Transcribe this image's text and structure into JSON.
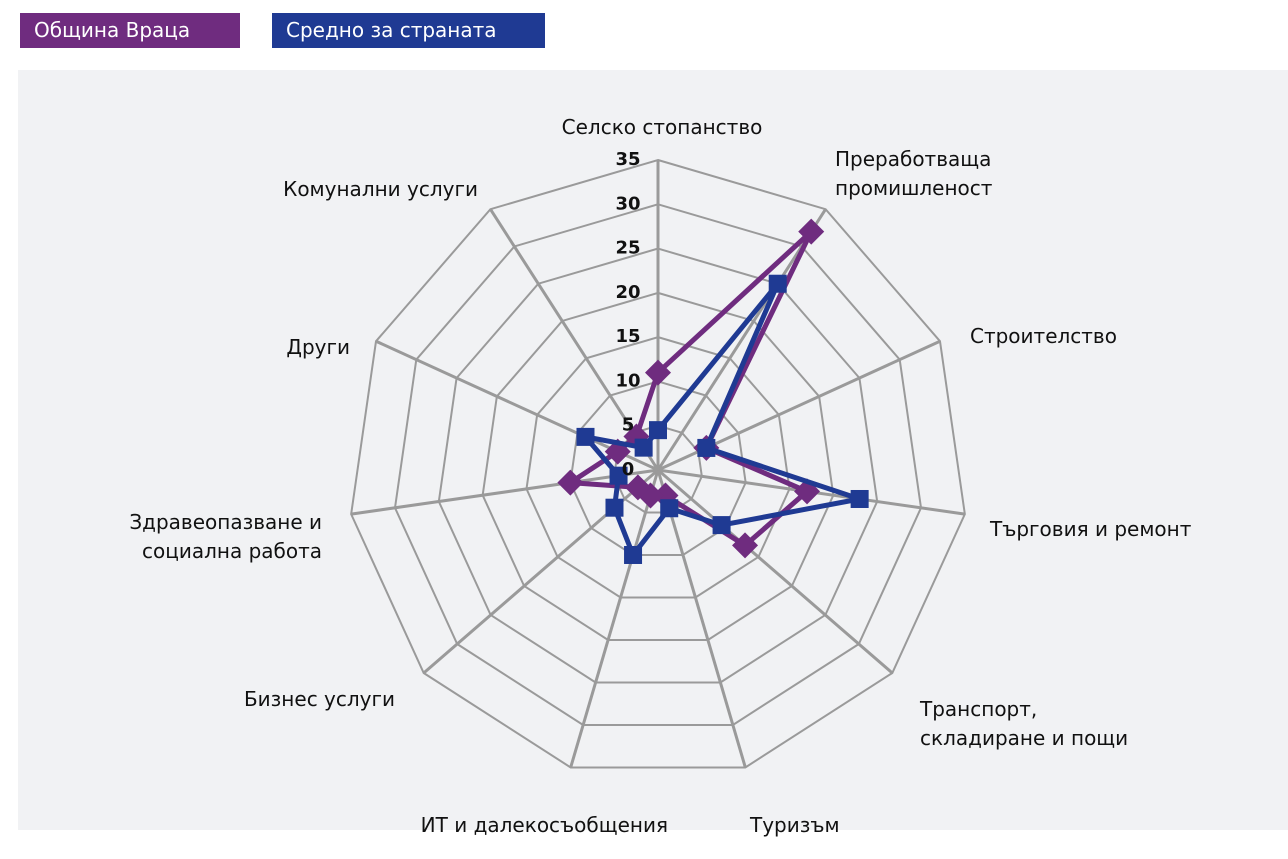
{
  "chart_data": {
    "type": "radar",
    "categories": [
      "Селско стопанство",
      "Преработваща промишленост",
      "Строителство",
      "Търговия и ремонт",
      "Транспорт, складиране и пощи",
      "Туризъм",
      "ИТ и далекосъобщения",
      "Бизнес услуги",
      "Здравеопазване и социална работа",
      "Други",
      "Комунални услуги"
    ],
    "series": [
      {
        "name": "Община Враца",
        "color": "#6f2c7f",
        "marker": "diamond",
        "values": [
          11,
          32,
          6,
          17,
          13,
          3,
          3,
          3,
          10,
          5,
          4.5
        ]
      },
      {
        "name": "Средно за страната",
        "color": "#1f3a93",
        "marker": "square",
        "values": [
          4.5,
          25,
          6,
          23,
          9.5,
          4.5,
          10,
          6.5,
          4.5,
          9,
          3
        ]
      }
    ],
    "ylim": [
      0,
      35
    ],
    "yticks": [
      0,
      5,
      10,
      15,
      20,
      25,
      30,
      35
    ],
    "grid": true
  }
}
